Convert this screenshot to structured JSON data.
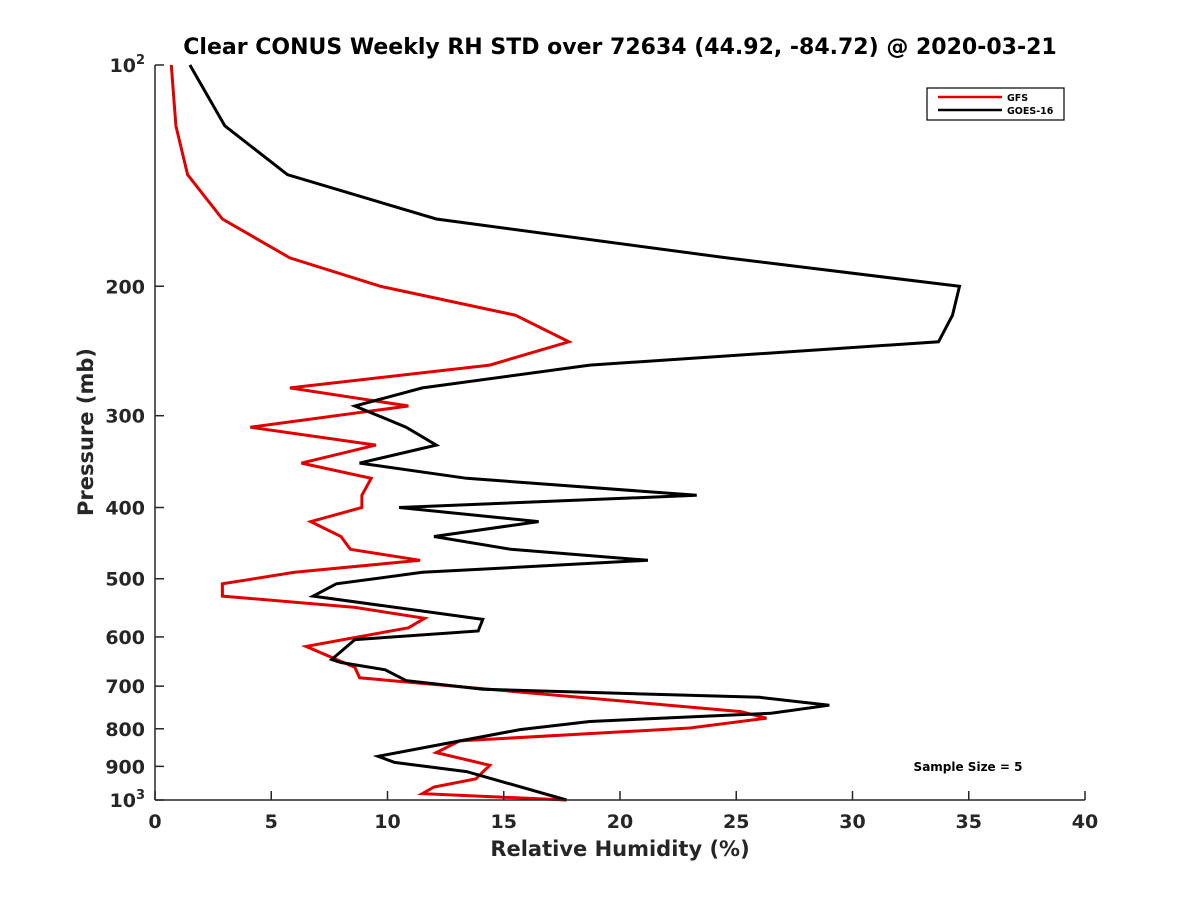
{
  "chart_data": {
    "type": "line",
    "title": "Clear CONUS Weekly RH STD over 72634 (44.92, -84.72) @ 2020-03-21",
    "xlabel": "Relative Humidity (%)",
    "ylabel": "Pressure (mb)",
    "xlim": [
      0,
      40
    ],
    "ylim": [
      100,
      1000
    ],
    "yscale": "log",
    "yreversed": true,
    "x_ticks": [
      0,
      5,
      10,
      15,
      20,
      25,
      30,
      35,
      40
    ],
    "x_tick_labels": [
      "0",
      "5",
      "10",
      "15",
      "20",
      "25",
      "30",
      "35",
      "40"
    ],
    "y_ticks": [
      100,
      200,
      300,
      400,
      500,
      600,
      700,
      800,
      900,
      1000
    ],
    "y_tick_labels": [
      {
        "base": "10",
        "exp": "2"
      },
      {
        "text": "200"
      },
      {
        "text": "300"
      },
      {
        "text": "400"
      },
      {
        "text": "500"
      },
      {
        "text": "600"
      },
      {
        "text": "700"
      },
      {
        "text": "800"
      },
      {
        "text": "900"
      },
      {
        "base": "10",
        "exp": "3"
      }
    ],
    "grid": false,
    "legend_position": "top-right",
    "annotation": "Sample Size = 5",
    "series": [
      {
        "name": "GFS",
        "color": "#e00000",
        "points": [
          [
            0.7,
            100
          ],
          [
            0.9,
            121
          ],
          [
            1.4,
            141
          ],
          [
            2.9,
            162
          ],
          [
            5.8,
            183
          ],
          [
            9.7,
            200
          ],
          [
            15.5,
            219
          ],
          [
            17.8,
            238
          ],
          [
            14.4,
            256
          ],
          [
            5.8,
            275
          ],
          [
            10.9,
            291
          ],
          [
            4.1,
            311
          ],
          [
            9.5,
            329
          ],
          [
            6.3,
            348
          ],
          [
            9.3,
            365
          ],
          [
            8.9,
            385
          ],
          [
            8.9,
            400
          ],
          [
            6.7,
            418
          ],
          [
            8.0,
            438
          ],
          [
            8.4,
            456
          ],
          [
            11.4,
            472
          ],
          [
            6.0,
            490
          ],
          [
            2.9,
            508
          ],
          [
            2.9,
            528
          ],
          [
            8.6,
            547
          ],
          [
            11.6,
            566
          ],
          [
            10.9,
            583
          ],
          [
            6.5,
            618
          ],
          [
            8.6,
            660
          ],
          [
            8.8,
            682
          ],
          [
            25.2,
            758
          ],
          [
            26.3,
            774
          ],
          [
            23.0,
            798
          ],
          [
            13.1,
            831
          ],
          [
            12.1,
            862
          ],
          [
            14.4,
            897
          ],
          [
            14.1,
            916
          ],
          [
            13.8,
            936
          ],
          [
            12.0,
            960
          ],
          [
            11.5,
            980
          ],
          [
            17.7,
            1000
          ]
        ]
      },
      {
        "name": "GOES-16",
        "color": "#000000",
        "points": [
          [
            1.5,
            100
          ],
          [
            3.0,
            121
          ],
          [
            5.7,
            141
          ],
          [
            12.1,
            162
          ],
          [
            24.6,
            183
          ],
          [
            34.6,
            200
          ],
          [
            34.3,
            219
          ],
          [
            33.7,
            238
          ],
          [
            18.7,
            256
          ],
          [
            11.5,
            275
          ],
          [
            8.6,
            291
          ],
          [
            10.8,
            311
          ],
          [
            12.1,
            329
          ],
          [
            8.8,
            348
          ],
          [
            13.4,
            365
          ],
          [
            23.3,
            385
          ],
          [
            10.5,
            400
          ],
          [
            16.5,
            418
          ],
          [
            12.0,
            438
          ],
          [
            15.3,
            456
          ],
          [
            21.2,
            472
          ],
          [
            11.5,
            490
          ],
          [
            7.8,
            508
          ],
          [
            6.8,
            528
          ],
          [
            14.1,
            568
          ],
          [
            13.9,
            589
          ],
          [
            8.6,
            605
          ],
          [
            7.6,
            644
          ],
          [
            8.0,
            650
          ],
          [
            9.9,
            665
          ],
          [
            10.8,
            688
          ],
          [
            14.1,
            707
          ],
          [
            26.0,
            725
          ],
          [
            29.0,
            743
          ],
          [
            26.5,
            762
          ],
          [
            18.7,
            782
          ],
          [
            15.7,
            802
          ],
          [
            11.8,
            846
          ],
          [
            9.6,
            872
          ],
          [
            10.3,
            889
          ],
          [
            13.4,
            915
          ],
          [
            17.7,
            1000
          ]
        ]
      }
    ]
  }
}
